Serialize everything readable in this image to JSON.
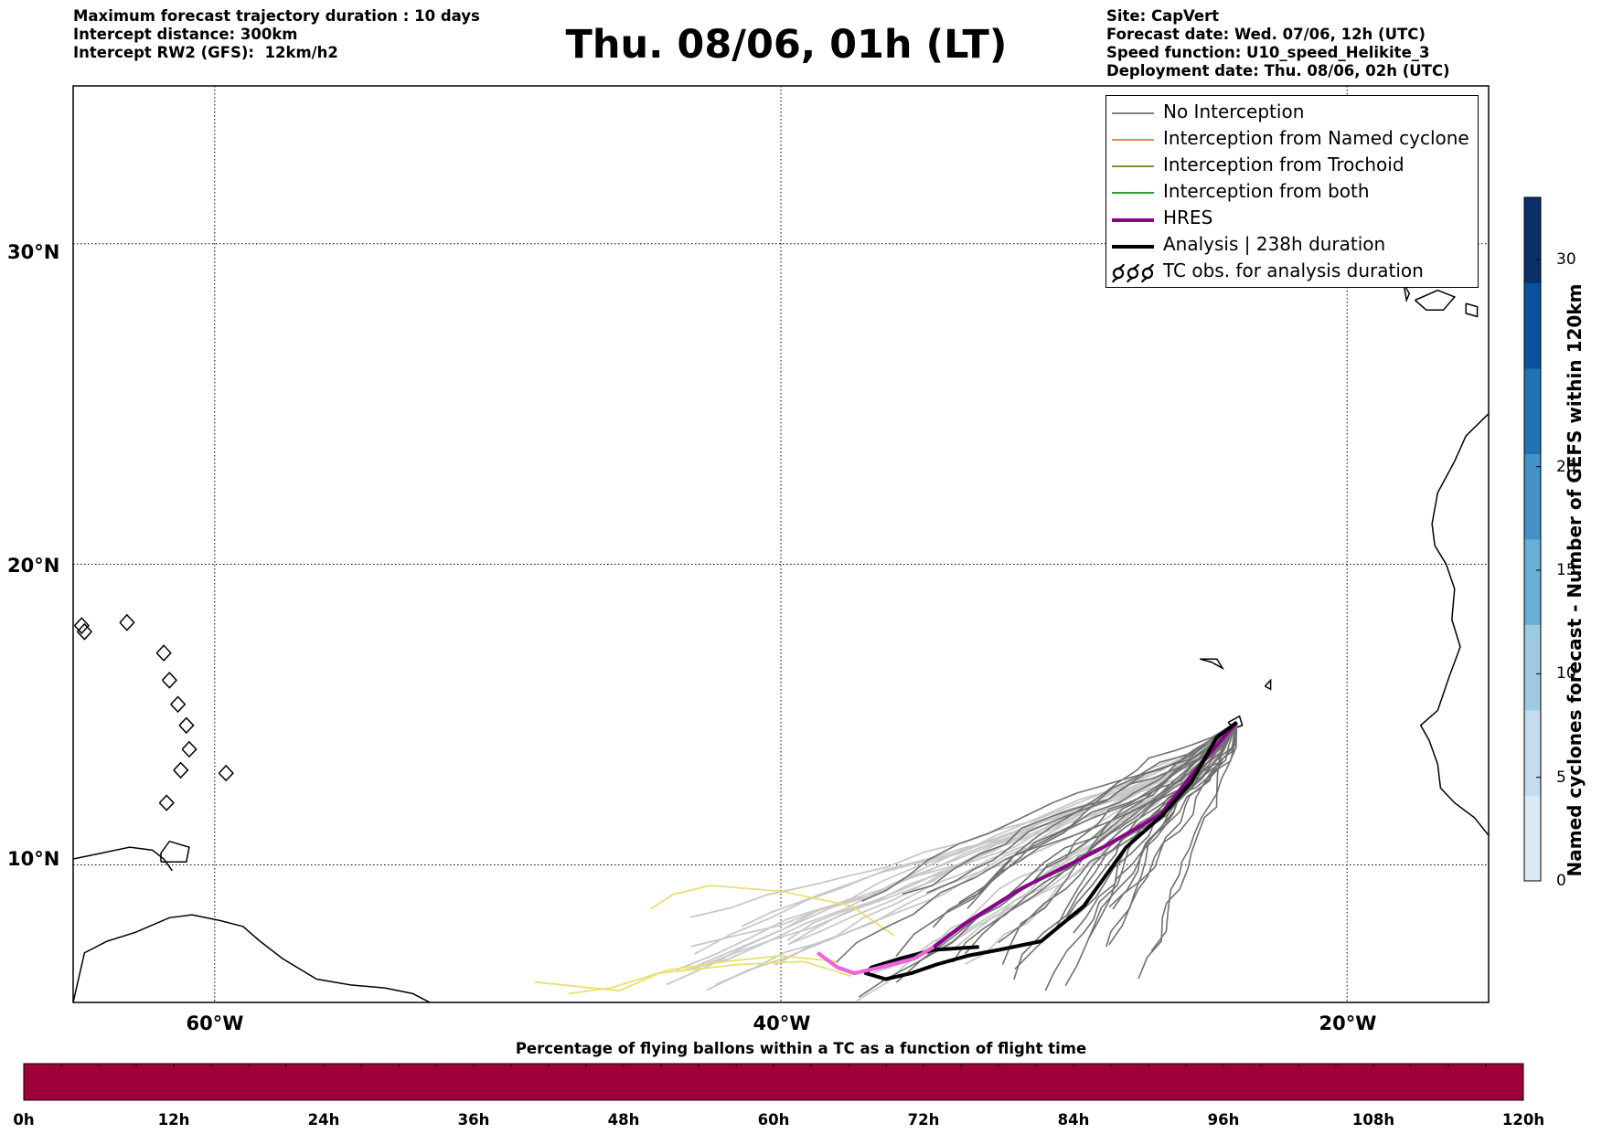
{
  "header": {
    "left_lines": [
      "Maximum forecast trajectory duration : 10 days",
      "Intercept distance: 300km",
      "Intercept RW2 (GFS):  12km/h2"
    ],
    "title": "Thu. 08/06, 01h (LT)",
    "right_lines": [
      "Site: CapVert",
      "Forecast date: Wed. 07/06, 12h (UTC)",
      "Speed function: U10_speed_Helikite_3",
      "Deployment date: Thu. 08/06, 02h (UTC)"
    ]
  },
  "map": {
    "lat_labels": [
      "30°N",
      "20°N",
      "10°N"
    ],
    "lon_labels": [
      "60°W",
      "40°W",
      "20°W"
    ],
    "lon_range": [
      -65,
      -15
    ],
    "lat_range": [
      5.3,
      34.6
    ],
    "grid_lons": [
      -60,
      -40,
      -20
    ],
    "grid_lats": [
      30,
      20,
      10
    ]
  },
  "legend": {
    "items": [
      {
        "label": "No Interception",
        "color": "#808080",
        "style": "thin"
      },
      {
        "label": "Interception from Named cyclone",
        "color": "#ff7f50",
        "style": "thin"
      },
      {
        "label": "Interception from Trochoid",
        "color": "#8b8b3a",
        "style": "thin"
      },
      {
        "label": "Interception from both",
        "color": "#2ca02c",
        "style": "thin"
      },
      {
        "label": "HRES",
        "color": "#8b008b",
        "style": "thick"
      },
      {
        "label": "Analysis | 238h duration",
        "color": "#000000",
        "style": "thick"
      },
      {
        "label": "TC obs. for analysis duration",
        "color": "#000000",
        "style": "symbol",
        "icon": "cyclone-icon"
      }
    ]
  },
  "colorbar": {
    "label": "Named cyclones forecast - Number of GEFS within 120km",
    "ticks": [
      0,
      5,
      10,
      15,
      20,
      30
    ],
    "range": [
      0,
      33
    ],
    "colors": [
      "#dbe9f6",
      "#c6dbef",
      "#9ecae1",
      "#6baed6",
      "#4292c6",
      "#2171b5",
      "#08519c",
      "#08306b"
    ]
  },
  "progress_bar": {
    "title": "Percentage of flying ballons within a TC as a function of flight time",
    "ticks": [
      "0h",
      "12h",
      "24h",
      "36h",
      "48h",
      "60h",
      "72h",
      "84h",
      "96h",
      "108h",
      "120h"
    ],
    "fill_color": "#9e003a",
    "segments": 40
  },
  "chart_data": {
    "type": "line",
    "series": [
      {
        "name": "HRES",
        "color": "#8b008b",
        "points": [
          [
            -23.9,
            14.8
          ],
          [
            -25.0,
            13.6
          ],
          [
            -26.6,
            11.7
          ],
          [
            -28.8,
            10.5
          ],
          [
            -31.5,
            9.2
          ],
          [
            -33.5,
            8.0
          ],
          [
            -34.6,
            7.2
          ],
          [
            -35.3,
            6.8
          ],
          [
            -36.5,
            6.5
          ],
          [
            -37.4,
            6.3
          ],
          [
            -38.0,
            6.5
          ],
          [
            -38.7,
            7.0
          ]
        ]
      },
      {
        "name": "Analysis | 238h duration",
        "color": "#000000",
        "points": [
          [
            -23.9,
            14.8
          ],
          [
            -24.6,
            14.3
          ],
          [
            -25.5,
            12.8
          ],
          [
            -26.5,
            11.7
          ],
          [
            -27.8,
            10.6
          ],
          [
            -29.3,
            8.6
          ],
          [
            -30.8,
            7.4
          ],
          [
            -32.3,
            7.1
          ],
          [
            -33.4,
            6.9
          ],
          [
            -34.5,
            6.6
          ],
          [
            -35.4,
            6.3
          ],
          [
            -36.3,
            6.1
          ],
          [
            -37.0,
            6.3
          ],
          [
            -36.8,
            6.5
          ],
          [
            -35.8,
            6.8
          ],
          [
            -34.6,
            7.1
          ],
          [
            -33.0,
            7.2
          ]
        ]
      }
    ]
  }
}
